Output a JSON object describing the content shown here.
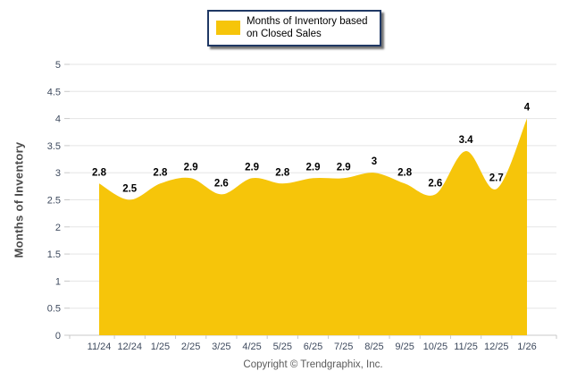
{
  "legend": {
    "label": "Months of Inventory based on Closed Sales"
  },
  "footer": {
    "copyright": "Copyright © Trendgraphix, Inc."
  },
  "colors": {
    "area": "#F6C50A",
    "legend_border": "#1F3864",
    "grid": "#E5E5E5",
    "axis": "#C9C9C9",
    "tick_label": "#3E4A5E",
    "data_label": "#000000",
    "footer_text": "#5A5A5A",
    "y_title": "#4A4A4A"
  },
  "chart_data": {
    "type": "area",
    "title": "",
    "xlabel": "",
    "ylabel": "Months of Inventory",
    "legend": "Months of Inventory based on Closed Sales",
    "legend_position": "top",
    "grid": true,
    "ylim": [
      0,
      5
    ],
    "ytick_step": 0.5,
    "categories": [
      "11/24",
      "12/24",
      "1/25",
      "2/25",
      "3/25",
      "4/25",
      "5/25",
      "6/25",
      "7/25",
      "8/25",
      "9/25",
      "10/25",
      "11/25",
      "12/25",
      "1/26"
    ],
    "values": [
      2.8,
      2.5,
      2.8,
      2.9,
      2.6,
      2.9,
      2.8,
      2.9,
      2.9,
      3,
      2.8,
      2.6,
      3.4,
      2.7,
      4
    ],
    "value_labels": [
      "2.8",
      "2.5",
      "2.8",
      "2.9",
      "2.6",
      "2.9",
      "2.8",
      "2.9",
      "2.9",
      "3",
      "2.8",
      "2.6",
      "3.4",
      "2.7",
      "4"
    ],
    "area_color": "#F6C50A"
  }
}
